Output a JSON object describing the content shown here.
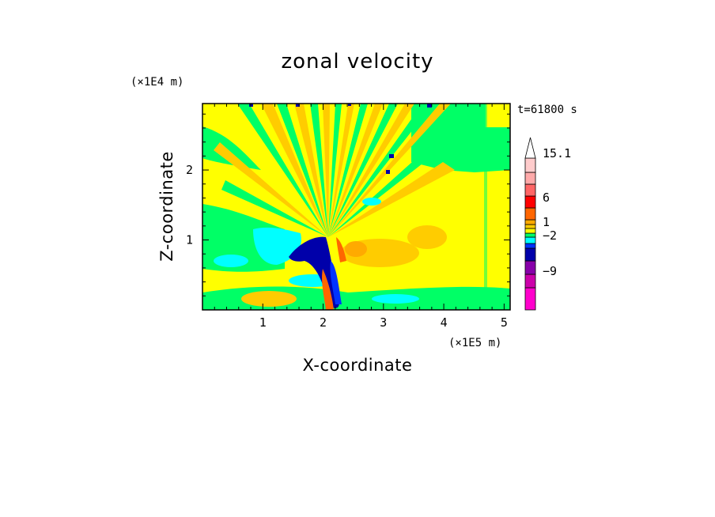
{
  "chart_data": {
    "type": "heatmap",
    "title": "zonal velocity",
    "xlabel": "X-coordinate",
    "ylabel": "Z-coordinate",
    "x_unit": "(×1E5 m)",
    "y_unit": "(×1E4 m)",
    "time_label": "t=61800 s",
    "xlim": [
      0,
      5.1
    ],
    "ylim": [
      0,
      2.95
    ],
    "x_ticks": [
      "1",
      "2",
      "3",
      "4",
      "5"
    ],
    "y_ticks": [
      "1",
      "2"
    ],
    "colorbar": {
      "colors": [
        "#ff00cc",
        "#cc00aa",
        "#8800aa",
        "#0000aa",
        "#0033ff",
        "#00ffff",
        "#00ff66",
        "#ffff00",
        "#ffcc00",
        "#ffaa00",
        "#ff6600",
        "#ff0000",
        "#ff6666",
        "#ffaaaa",
        "#ffcccc",
        "#ffffff"
      ],
      "labels": [
        "15.1",
        "6",
        "1",
        "−2",
        "−9"
      ]
    }
  }
}
